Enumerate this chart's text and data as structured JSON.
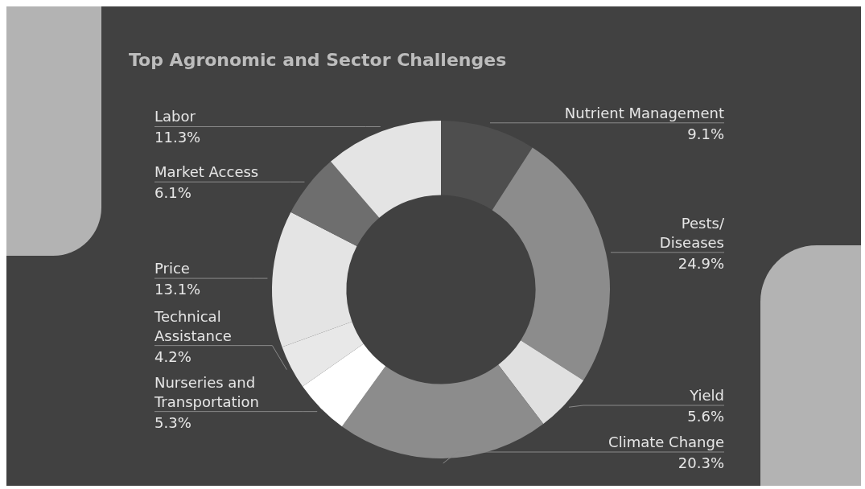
{
  "chart_data": {
    "type": "donut",
    "title": "Top Agronomic and Sector Challenges",
    "categories": [
      "Nutrient Management",
      "Pests/\nDiseases",
      "Yield",
      "Climate Change",
      "Nurseries and\nTransportation",
      "Technical\nAssistance",
      "Price",
      "Market Access",
      "Labor"
    ],
    "values": [
      9.1,
      24.9,
      5.6,
      20.3,
      5.3,
      4.2,
      13.1,
      6.1,
      11.3
    ],
    "colors": [
      "#4e4e4e",
      "#8c8c8c",
      "#e0e0e0",
      "#8c8c8c",
      "#ffffff",
      "#e8e8e8",
      "#e4e4e4",
      "#6e6e6e",
      "#e4e4e4"
    ],
    "value_labels": [
      "9.1%",
      "24.9%",
      "5.6%",
      "20.3%",
      "5.3%",
      "4.2%",
      "13.1%",
      "6.1%",
      "11.3%"
    ],
    "legend": false
  }
}
